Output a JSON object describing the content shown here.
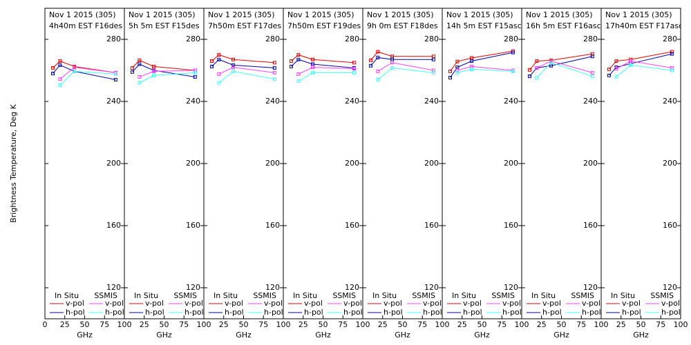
{
  "chart_data": [
    {
      "type": "line",
      "title": "Nov 1 2015 (305)",
      "subtitle": "4h40m EST F16des",
      "ylabel": "Brightness Temperature, Deg K",
      "xlabel": "GHz",
      "x": [
        10,
        19,
        37,
        89
      ],
      "xlim": [
        0,
        100
      ],
      "xticks": [
        0,
        25,
        50,
        75,
        100
      ],
      "ylim": [
        100,
        300
      ],
      "yticks": [
        120,
        160,
        200,
        240,
        280
      ],
      "series": [
        {
          "group": "In Situ",
          "name": "v-pol",
          "color": "#e00000",
          "values": [
            261.6,
            266,
            262.5,
            258.5
          ]
        },
        {
          "group": "In Situ",
          "name": "h-pol",
          "color": "#0000a0",
          "values": [
            258,
            263.4,
            259.4,
            254
          ]
        },
        {
          "group": "SSMIS",
          "name": "v-pol",
          "color": "#ff40ff",
          "values": [
            null,
            254.4,
            262,
            258.5
          ]
        },
        {
          "group": "SSMIS",
          "name": "h-pol",
          "color": "#40ffff",
          "values": [
            null,
            250.4,
            259.4,
            257.6
          ]
        }
      ]
    },
    {
      "type": "line",
      "title": "Nov 1 2015 (305)",
      "subtitle": "5h 5m EST F15des",
      "xlabel": "GHz",
      "x": [
        10,
        19,
        37,
        89
      ],
      "xlim": [
        0,
        100
      ],
      "xticks": [
        25,
        50,
        75,
        100
      ],
      "ylim": [
        100,
        300
      ],
      "yticks": [
        120,
        160,
        200,
        240,
        280
      ],
      "series": [
        {
          "group": "In Situ",
          "name": "v-pol",
          "color": "#e00000",
          "values": [
            261.6,
            266.5,
            262.5,
            260
          ]
        },
        {
          "group": "In Situ",
          "name": "h-pol",
          "color": "#0000a0",
          "values": [
            259,
            264,
            260,
            255.8
          ]
        },
        {
          "group": "SSMIS",
          "name": "v-pol",
          "color": "#ff40ff",
          "values": [
            null,
            255.8,
            259.4,
            260
          ]
        },
        {
          "group": "SSMIS",
          "name": "h-pol",
          "color": "#40ffff",
          "values": [
            null,
            252,
            256.7,
            258.5
          ]
        }
      ]
    },
    {
      "type": "line",
      "title": "Nov 1 2015 (305)",
      "subtitle": "7h50m EST F17des",
      "xlabel": "GHz",
      "x": [
        10,
        19,
        37,
        89
      ],
      "xlim": [
        0,
        100
      ],
      "xticks": [
        25,
        50,
        75,
        100
      ],
      "ylim": [
        100,
        300
      ],
      "yticks": [
        120,
        160,
        200,
        240,
        280
      ],
      "series": [
        {
          "group": "In Situ",
          "name": "v-pol",
          "color": "#e00000",
          "values": [
            266,
            270,
            267,
            265
          ]
        },
        {
          "group": "In Situ",
          "name": "h-pol",
          "color": "#0000a0",
          "values": [
            262.5,
            267,
            263.4,
            261.6
          ]
        },
        {
          "group": "SSMIS",
          "name": "v-pol",
          "color": "#ff40ff",
          "values": [
            null,
            257.6,
            262,
            258.5
          ]
        },
        {
          "group": "SSMIS",
          "name": "h-pol",
          "color": "#40ffff",
          "values": [
            null,
            252,
            259.4,
            254.4
          ]
        }
      ]
    },
    {
      "type": "line",
      "title": "Nov 1 2015 (305)",
      "subtitle": "7h50m EST F19des",
      "xlabel": "GHz",
      "x": [
        10,
        19,
        37,
        89
      ],
      "xlim": [
        0,
        100
      ],
      "xticks": [
        25,
        50,
        75,
        100
      ],
      "ylim": [
        100,
        300
      ],
      "yticks": [
        120,
        160,
        200,
        240,
        280
      ],
      "series": [
        {
          "group": "In Situ",
          "name": "v-pol",
          "color": "#e00000",
          "values": [
            266,
            270,
            267,
            265
          ]
        },
        {
          "group": "In Situ",
          "name": "h-pol",
          "color": "#0000a0",
          "values": [
            262.5,
            267,
            264,
            261.6
          ]
        },
        {
          "group": "SSMIS",
          "name": "v-pol",
          "color": "#ff40ff",
          "values": [
            null,
            257.6,
            262,
            261
          ]
        },
        {
          "group": "SSMIS",
          "name": "h-pol",
          "color": "#40ffff",
          "values": [
            null,
            253,
            258.5,
            258.5
          ]
        }
      ]
    },
    {
      "type": "line",
      "title": "Nov 1 2015 (305)",
      "subtitle": "9h 0m EST F18des",
      "xlabel": "GHz",
      "x": [
        10,
        19,
        37,
        89
      ],
      "xlim": [
        0,
        100
      ],
      "xticks": [
        25,
        50,
        75,
        100
      ],
      "ylim": [
        100,
        300
      ],
      "yticks": [
        120,
        160,
        200,
        240,
        280
      ],
      "series": [
        {
          "group": "In Situ",
          "name": "v-pol",
          "color": "#e00000",
          "values": [
            266.5,
            272,
            269,
            269
          ]
        },
        {
          "group": "In Situ",
          "name": "h-pol",
          "color": "#0000a0",
          "values": [
            263,
            268.3,
            267,
            267
          ]
        },
        {
          "group": "SSMIS",
          "name": "v-pol",
          "color": "#ff40ff",
          "values": [
            null,
            259.4,
            265,
            260
          ]
        },
        {
          "group": "SSMIS",
          "name": "h-pol",
          "color": "#40ffff",
          "values": [
            null,
            254,
            261.6,
            258.5
          ]
        }
      ]
    },
    {
      "type": "line",
      "title": "Nov 1 2015 (305)",
      "subtitle": "14h 5m EST F15asc",
      "xlabel": "GHz",
      "x": [
        10,
        19,
        37,
        89
      ],
      "xlim": [
        0,
        100
      ],
      "xticks": [
        25,
        50,
        75,
        100
      ],
      "ylim": [
        100,
        300
      ],
      "yticks": [
        120,
        160,
        200,
        240,
        280
      ],
      "series": [
        {
          "group": "In Situ",
          "name": "v-pol",
          "color": "#e00000",
          "values": [
            259.4,
            265.7,
            268,
            272.4
          ]
        },
        {
          "group": "In Situ",
          "name": "h-pol",
          "color": "#0000a0",
          "values": [
            255.3,
            262,
            266,
            271.5
          ]
        },
        {
          "group": "SSMIS",
          "name": "v-pol",
          "color": "#ff40ff",
          "values": [
            null,
            260,
            262.5,
            260
          ]
        },
        {
          "group": "SSMIS",
          "name": "h-pol",
          "color": "#40ffff",
          "values": [
            null,
            258.5,
            260.7,
            259.4
          ]
        }
      ]
    },
    {
      "type": "line",
      "title": "Nov 1 2015 (305)",
      "subtitle": "16h 5m EST F16asc",
      "xlabel": "GHz",
      "x": [
        10,
        19,
        37,
        89
      ],
      "xlim": [
        0,
        100
      ],
      "xticks": [
        25,
        50,
        75,
        100
      ],
      "ylim": [
        100,
        300
      ],
      "yticks": [
        120,
        160,
        200,
        240,
        280
      ],
      "series": [
        {
          "group": "In Situ",
          "name": "v-pol",
          "color": "#e00000",
          "values": [
            260.3,
            266,
            266.5,
            270.6
          ]
        },
        {
          "group": "In Situ",
          "name": "h-pol",
          "color": "#0000a0",
          "values": [
            256.2,
            261.6,
            263,
            269
          ]
        },
        {
          "group": "SSMIS",
          "name": "v-pol",
          "color": "#ff40ff",
          "values": [
            null,
            261.6,
            266,
            258.5
          ]
        },
        {
          "group": "SSMIS",
          "name": "h-pol",
          "color": "#40ffff",
          "values": [
            null,
            255.3,
            265,
            256.2
          ]
        }
      ]
    },
    {
      "type": "line",
      "title": "Nov 1 2015 (305)",
      "subtitle": "17h40m EST F17asc",
      "xlabel": "GHz",
      "x": [
        10,
        19,
        37,
        89
      ],
      "xlim": [
        0,
        100
      ],
      "xticks": [
        25,
        50,
        75,
        100
      ],
      "ylim": [
        100,
        300
      ],
      "yticks": [
        120,
        160,
        200,
        240,
        280
      ],
      "series": [
        {
          "group": "In Situ",
          "name": "v-pol",
          "color": "#e00000",
          "values": [
            260.7,
            266,
            267,
            272
          ]
        },
        {
          "group": "In Situ",
          "name": "h-pol",
          "color": "#0000a0",
          "values": [
            256.7,
            262,
            264.3,
            270.6
          ]
        },
        {
          "group": "SSMIS",
          "name": "v-pol",
          "color": "#ff40ff",
          "values": [
            null,
            261,
            266,
            261.6
          ]
        },
        {
          "group": "SSMIS",
          "name": "h-pol",
          "color": "#40ffff",
          "values": [
            null,
            255.8,
            263.4,
            260
          ]
        }
      ]
    }
  ]
}
